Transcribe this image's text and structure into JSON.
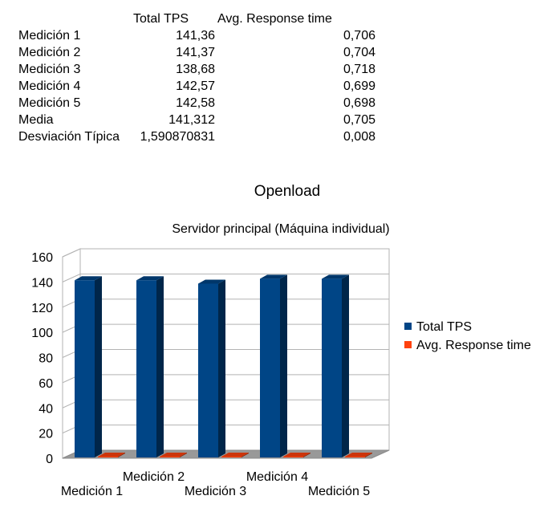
{
  "table": {
    "headers": [
      "",
      "Total TPS",
      "Avg. Response time"
    ],
    "rows": [
      [
        "Medición 1",
        "141,36",
        "0,706"
      ],
      [
        "Medición 2",
        "141,37",
        "0,704"
      ],
      [
        "Medición 3",
        "138,68",
        "0,718"
      ],
      [
        "Medición 4",
        "142,57",
        "0,699"
      ],
      [
        "Medición 5",
        "142,58",
        "0,698"
      ],
      [
        "Media",
        "141,312",
        "0,705"
      ],
      [
        "Desviación Típica",
        "1,590870831",
        "0,008"
      ]
    ]
  },
  "chart_data": {
    "type": "bar",
    "title": "Openload",
    "subtitle": "Servidor principal (Máquina individual)",
    "categories": [
      "Medición 1",
      "Medición 2",
      "Medición 3",
      "Medición 4",
      "Medición 5"
    ],
    "series": [
      {
        "name": "Total TPS",
        "values": [
          141.36,
          141.37,
          138.68,
          142.57,
          142.58
        ],
        "color": "#004586"
      },
      {
        "name": "Avg. Response time",
        "values": [
          0.706,
          0.704,
          0.718,
          0.699,
          0.698
        ],
        "color": "#ff420e"
      }
    ],
    "ylim": [
      0,
      160
    ],
    "yticks": [
      0,
      20,
      40,
      60,
      80,
      100,
      120,
      140,
      160
    ],
    "grid": true,
    "legend_position": "right",
    "three_d": true
  }
}
